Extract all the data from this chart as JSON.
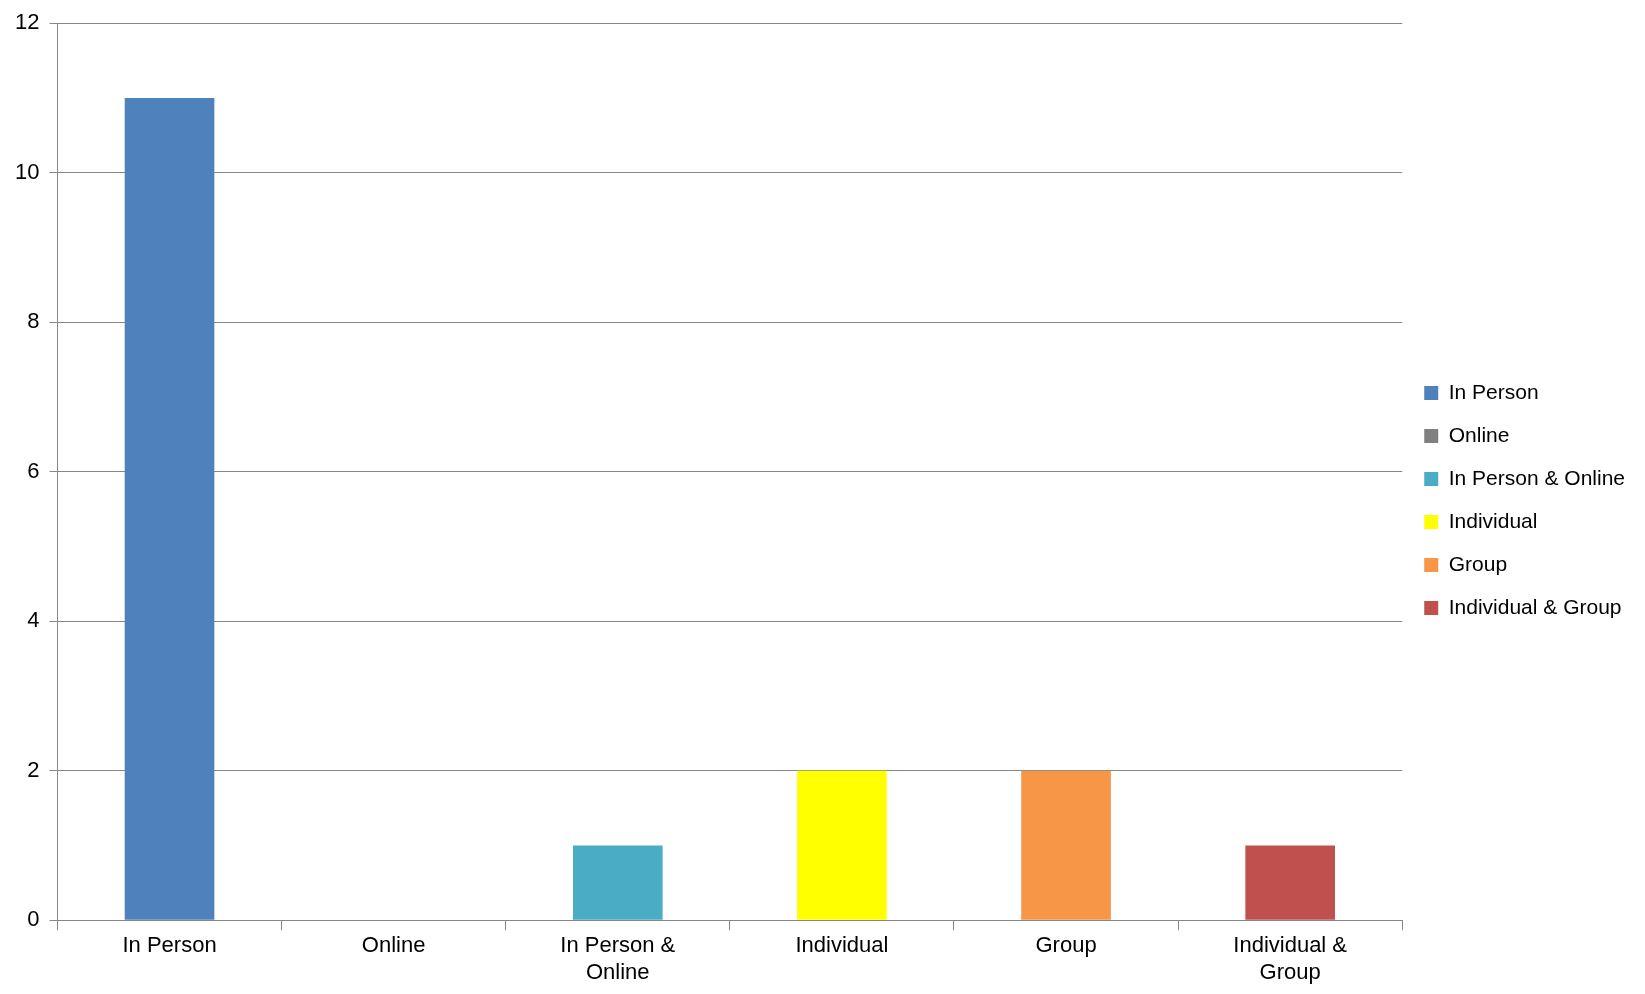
{
  "chart_data": {
    "type": "bar",
    "categories": [
      "In Person",
      "Online",
      "In Person & Online",
      "Individual",
      "Group",
      "Individual & Group"
    ],
    "series": [
      {
        "name": "In Person",
        "color": "#4f81bd",
        "values": [
          11,
          null,
          null,
          null,
          null,
          null
        ]
      },
      {
        "name": "Online",
        "color": "#808080",
        "values": [
          null,
          0,
          null,
          null,
          null,
          null
        ]
      },
      {
        "name": "In Person & Online",
        "color": "#4bacc6",
        "values": [
          null,
          null,
          1,
          null,
          null,
          null
        ]
      },
      {
        "name": "Individual",
        "color": "#ffff00",
        "values": [
          null,
          null,
          null,
          2,
          null,
          null
        ]
      },
      {
        "name": "Group",
        "color": "#f79646",
        "values": [
          null,
          null,
          null,
          null,
          2,
          null
        ]
      },
      {
        "name": "Individual & Group",
        "color": "#c0504d",
        "values": [
          null,
          null,
          null,
          null,
          null,
          1
        ]
      }
    ],
    "ylim": [
      0,
      12
    ],
    "yticks": [
      0,
      2,
      4,
      6,
      8,
      10,
      12
    ],
    "grid": "y",
    "legend": "right"
  }
}
